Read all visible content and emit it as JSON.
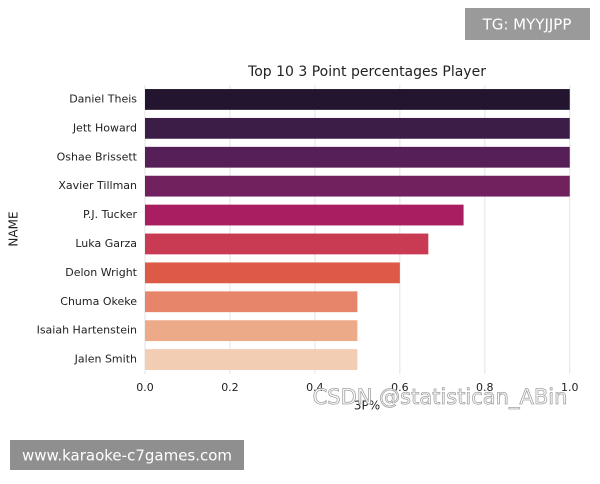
{
  "chart_data": {
    "type": "barh",
    "title": "Top 10 3 Point percentages Player",
    "xlabel": "3P%",
    "ylabel": "NAME",
    "categories": [
      "Daniel Theis",
      "Jett Howard",
      "Oshae Brissett",
      "Xavier Tillman",
      "P.J. Tucker",
      "Luka Garza",
      "Delon Wright",
      "Chuma Okeke",
      "Isaiah Hartenstein",
      "Jalen Smith"
    ],
    "values": [
      1.0,
      1.0,
      1.0,
      1.0,
      0.75,
      0.667,
      0.6,
      0.5,
      0.5,
      0.5
    ],
    "colors": [
      "#231530",
      "#3b1d47",
      "#561f57",
      "#72215f",
      "#a81e60",
      "#c93b52",
      "#dd5a46",
      "#e6856a",
      "#edaa89",
      "#f2ccb3"
    ],
    "xlim": [
      0,
      1.05
    ],
    "xticks": [
      {
        "value": 0,
        "label": "0.0"
      },
      0.2,
      0.4,
      0.6,
      0.8,
      {
        "value": 1,
        "label": "1.0"
      }
    ],
    "grid": true
  },
  "watermarks": {
    "top_right": "TG: MYYJJPP",
    "bottom_left": "www.karaoke-c7games.com",
    "overlay": "CSDN @statistican_ABin"
  }
}
